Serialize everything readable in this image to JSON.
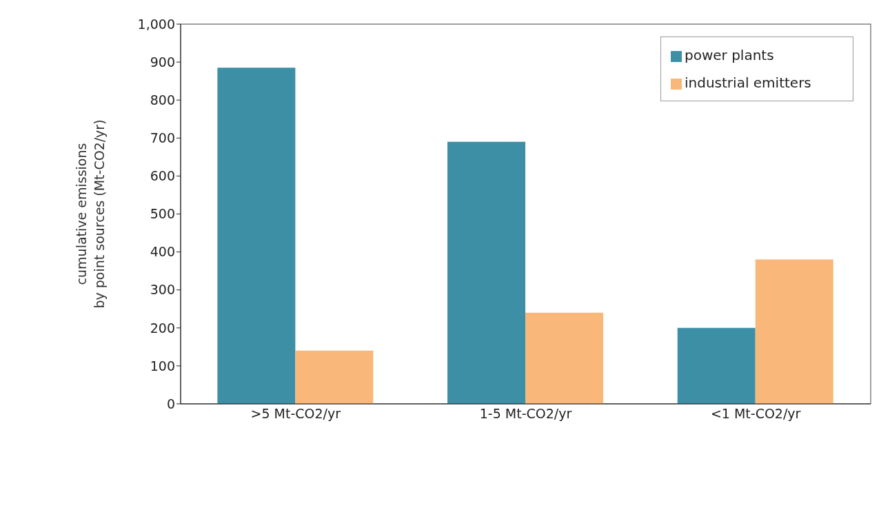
{
  "chart_data": {
    "type": "bar",
    "ylabel": "cumulative emissions\nby point sources (Mt-CO2/yr)",
    "categories": [
      ">5 Mt-CO2/yr",
      "1-5 Mt-CO2/yr",
      "<1 Mt-CO2/yr"
    ],
    "series": [
      {
        "name": "power plants",
        "color": "#3c8fa5",
        "values": [
          885,
          690,
          200
        ]
      },
      {
        "name": "industrial emitters",
        "color": "#f9b87a",
        "values": [
          140,
          240,
          380
        ]
      }
    ],
    "ylim": [
      0,
      1000
    ],
    "yticks": [
      0,
      100,
      200,
      300,
      400,
      500,
      600,
      700,
      800,
      900,
      {
        "value": 1000,
        "label": "1,000"
      }
    ],
    "grid": false,
    "legend": "top right"
  }
}
